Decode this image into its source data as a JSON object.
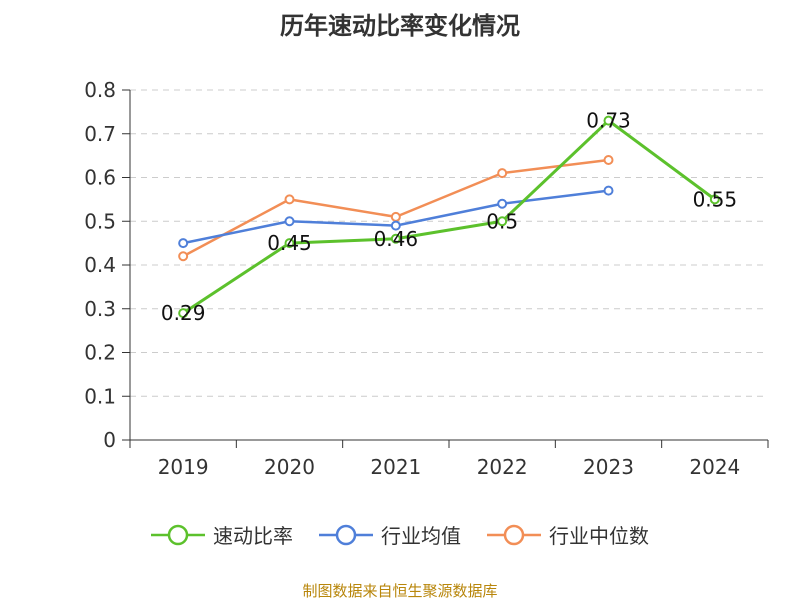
{
  "chart_data": {
    "type": "line",
    "title": "历年速动比率变化情况",
    "categories": [
      "2019",
      "2020",
      "2021",
      "2022",
      "2023",
      "2024"
    ],
    "yticks": [
      "0",
      "0.1",
      "0.2",
      "0.3",
      "0.4",
      "0.5",
      "0.6",
      "0.7",
      "0.8"
    ],
    "ylim": [
      0,
      0.8
    ],
    "grid": true,
    "legend_position": "bottom",
    "series": [
      {
        "name": "速动比率",
        "color": "#5cc12c",
        "values": [
          0.29,
          0.45,
          0.46,
          0.5,
          0.73,
          0.55
        ],
        "labels": [
          "0.29",
          "0.45",
          "0.46",
          "0.5",
          "0.73",
          "0.55"
        ]
      },
      {
        "name": "行业均值",
        "color": "#4f7fd9",
        "values": [
          0.45,
          0.5,
          0.49,
          0.54,
          0.57,
          null
        ]
      },
      {
        "name": "行业中位数",
        "color": "#f28e56",
        "values": [
          0.42,
          0.55,
          0.51,
          0.61,
          0.64,
          null
        ]
      }
    ]
  },
  "source": "制图数据来自恒生聚源数据库"
}
